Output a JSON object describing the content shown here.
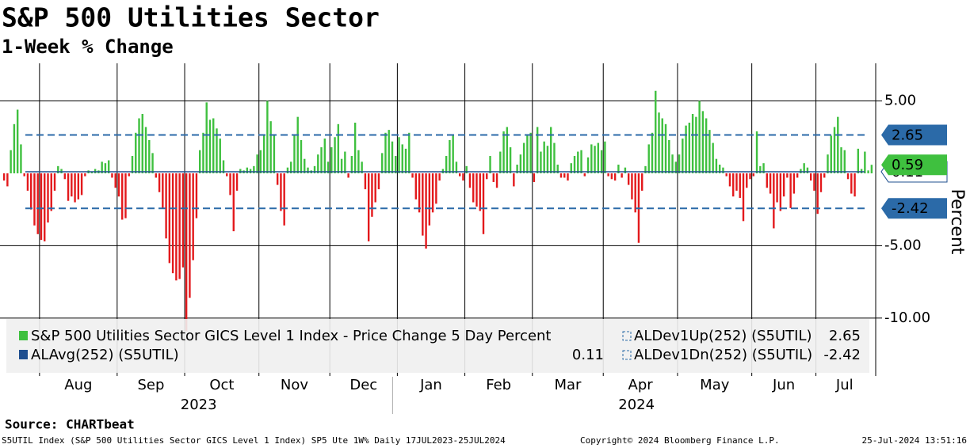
{
  "chart_data": {
    "type": "bar",
    "title": "S&P 500 Utilities Sector",
    "subtitle": "1-Week % Change",
    "source": "Source: CHARTbeat",
    "y_axis_label": "Percent",
    "ylim": [
      -14,
      7.6
    ],
    "yticks": [
      {
        "value": 5,
        "label": "5.00"
      },
      {
        "value": -5,
        "label": "-5.00"
      },
      {
        "value": -10,
        "label": "-10.00"
      }
    ],
    "grid": true,
    "years": [
      "2023",
      "2024"
    ],
    "categories": [
      null,
      null,
      null,
      null,
      null,
      null,
      null,
      null,
      null,
      null,
      null,
      "Aug",
      null,
      null,
      null,
      null,
      null,
      null,
      null,
      null,
      null,
      null,
      null,
      null,
      null,
      null,
      null,
      null,
      null,
      null,
      null,
      null,
      null,
      null,
      "Sep",
      null,
      null,
      null,
      null,
      null,
      null,
      null,
      null,
      null,
      null,
      null,
      null,
      null,
      null,
      null,
      null,
      null,
      null,
      null,
      "Oct",
      null,
      null,
      null,
      null,
      null,
      null,
      null,
      null,
      null,
      null,
      null,
      null,
      null,
      null,
      null,
      null,
      null,
      null,
      null,
      null,
      null,
      "Nov",
      null,
      null,
      null,
      null,
      null,
      null,
      null,
      null,
      null,
      null,
      null,
      null,
      null,
      null,
      null,
      null,
      null,
      null,
      null,
      null,
      "Dec",
      null,
      null,
      null,
      null,
      null,
      null,
      null,
      null,
      null,
      null,
      null,
      null,
      null,
      null,
      null,
      null,
      null,
      null,
      null,
      "Jan",
      null,
      null,
      null,
      null,
      null,
      null,
      null,
      null,
      null,
      null,
      null,
      null,
      null,
      null,
      null,
      null,
      null,
      null,
      null,
      "Feb",
      null,
      null,
      null,
      null,
      null,
      null,
      null,
      null,
      null,
      null,
      null,
      null,
      null,
      null,
      null,
      null,
      null,
      null,
      null,
      "Mar",
      null,
      null,
      null,
      null,
      null,
      null,
      null,
      null,
      null,
      null,
      null,
      null,
      null,
      null,
      null,
      null,
      null,
      null,
      null,
      null,
      "Apr",
      null,
      null,
      null,
      null,
      null,
      null,
      null,
      null,
      null,
      null,
      null,
      null,
      null,
      null,
      null,
      null,
      null,
      null,
      null,
      null,
      null,
      "May",
      null,
      null,
      null,
      null,
      null,
      null,
      null,
      null,
      null,
      null,
      null,
      null,
      null,
      null,
      null,
      null,
      null,
      null,
      null,
      null,
      null,
      "Jun",
      null,
      null,
      null,
      null,
      null,
      null,
      null,
      null,
      null,
      null,
      null,
      null,
      null,
      null,
      null,
      null,
      null,
      null,
      "Jul",
      null,
      null,
      null,
      null,
      null,
      null,
      null,
      null,
      null,
      null,
      null,
      null,
      null,
      null,
      null,
      null
    ],
    "series": [
      {
        "name": "S&P 500 Utilities Sector GICS Level 1 Index - Price Change 5 Day Percent",
        "color": "#3fc03f",
        "negative_color": "#e3191c",
        "values": [
          -0.5,
          -0.9,
          1.6,
          3.4,
          4.4,
          2.0,
          -0.2,
          -1.2,
          -2.5,
          -3.6,
          -4.2,
          -4.6,
          -4.7,
          -3.4,
          -2.6,
          -1.2,
          0.5,
          0.3,
          -0.4,
          -1.9,
          -1.6,
          -2.0,
          -1.8,
          -1.5,
          -0.2,
          0.2,
          0.1,
          0.3,
          0.2,
          0.8,
          0.7,
          0.9,
          -0.3,
          -1.0,
          -1.6,
          -3.2,
          -3.1,
          -0.2,
          1.2,
          2.8,
          3.8,
          4.1,
          3.2,
          2.3,
          1.4,
          -0.3,
          -1.3,
          -2.4,
          -4.5,
          -6.2,
          -6.9,
          -7.4,
          -7.3,
          -6.5,
          -10.9,
          -8.6,
          -6.0,
          -3.1,
          1.6,
          2.8,
          4.9,
          3.7,
          3.8,
          3.1,
          2.4,
          0.9,
          -0.2,
          -1.5,
          -4.0,
          -1.2,
          0.3,
          0.2,
          0.4,
          0.3,
          0.5,
          1.3,
          1.6,
          2.6,
          5.0,
          3.6,
          2.6,
          -0.8,
          -2.6,
          -3.6,
          0.4,
          0.8,
          2.7,
          3.9,
          2.3,
          1.0,
          0.4,
          0.2,
          0.5,
          1.3,
          1.8,
          2.4,
          0.8,
          1.8,
          2.5,
          3.4,
          1.0,
          1.5,
          -0.3,
          1.2,
          3.5,
          1.6,
          0.8,
          -1.1,
          -4.7,
          -3.0,
          -2.0,
          -1.1,
          1.4,
          2.8,
          3.0,
          2.2,
          1.2,
          2.5,
          2.0,
          1.7,
          2.8,
          -0.3,
          -1.8,
          -2.7,
          -4.3,
          -5.2,
          -3.6,
          -2.7,
          -2.1,
          -0.5,
          0.3,
          1.2,
          2.3,
          2.6,
          0.8,
          -0.2,
          -0.5,
          0.5,
          -1.0,
          -2.0,
          -2.3,
          -2.6,
          -4.2,
          -0.4,
          1.2,
          -0.6,
          -1.0,
          1.5,
          2.9,
          3.2,
          1.8,
          -0.9,
          0.6,
          1.3,
          2.1,
          2.6,
          2.8,
          -0.6,
          3.2,
          1.5,
          2.2,
          1.9,
          3.2,
          2.1,
          0.6,
          -0.3,
          -0.3,
          -0.5,
          0.7,
          1.2,
          1.5,
          1.6,
          -0.2,
          1.1,
          2.0,
          1.9,
          2.1,
          1.6,
          2.2,
          -0.2,
          -0.4,
          -0.5,
          0.6,
          -0.3,
          0.4,
          -0.8,
          -1.8,
          -2.7,
          -4.8,
          -1.2,
          0.5,
          2.0,
          2.8,
          5.7,
          4.2,
          3.8,
          3.4,
          2.3,
          1.3,
          0.8,
          1.3,
          2.4,
          3.3,
          3.5,
          4.1,
          3.9,
          5.0,
          4.3,
          3.8,
          3.0,
          2.1,
          1.0,
          0.6,
          0.4,
          -0.2,
          -0.9,
          -1.6,
          -1.2,
          -1.7,
          -3.3,
          -1.0,
          -0.4,
          -0.2,
          2.9,
          0.5,
          0.7,
          -1.0,
          -1.4,
          -3.8,
          -2.0,
          -2.6,
          -1.6,
          -0.3,
          -2.4,
          -1.4,
          -0.3,
          0.3,
          0.7,
          0.4,
          -0.5,
          -1.2,
          -2.8,
          -1.3,
          -0.3,
          1.3,
          2.6,
          3.2,
          3.9,
          1.8,
          1.6,
          -0.4,
          -1.4,
          -1.6,
          1.7,
          0.3,
          1.5,
          0.2,
          0.59
        ]
      }
    ],
    "lines": [
      {
        "name": "ALAvg(252) (S5UTIL)",
        "value": 0.11,
        "color": "#1f4f8f",
        "style": "solid"
      },
      {
        "name": "ALDev1Up(252) (S5UTIL)",
        "value": 2.65,
        "color": "#2b6aa8",
        "style": "dashed"
      },
      {
        "name": "ALDev1Dn(252) (S5UTIL)",
        "value": -2.42,
        "color": "#2b6aa8",
        "style": "dashed"
      }
    ],
    "footer": {
      "left": "S5UTIL Index (S&P 500 Utilities Sector GICS Level 1 Index) SP5 Ute 1W%  Daily 17JUL2023-25JUL2024",
      "center": "Copyright© 2024 Bloomberg Finance L.P.",
      "right": "25-Jul-2024 13:51:16"
    }
  }
}
